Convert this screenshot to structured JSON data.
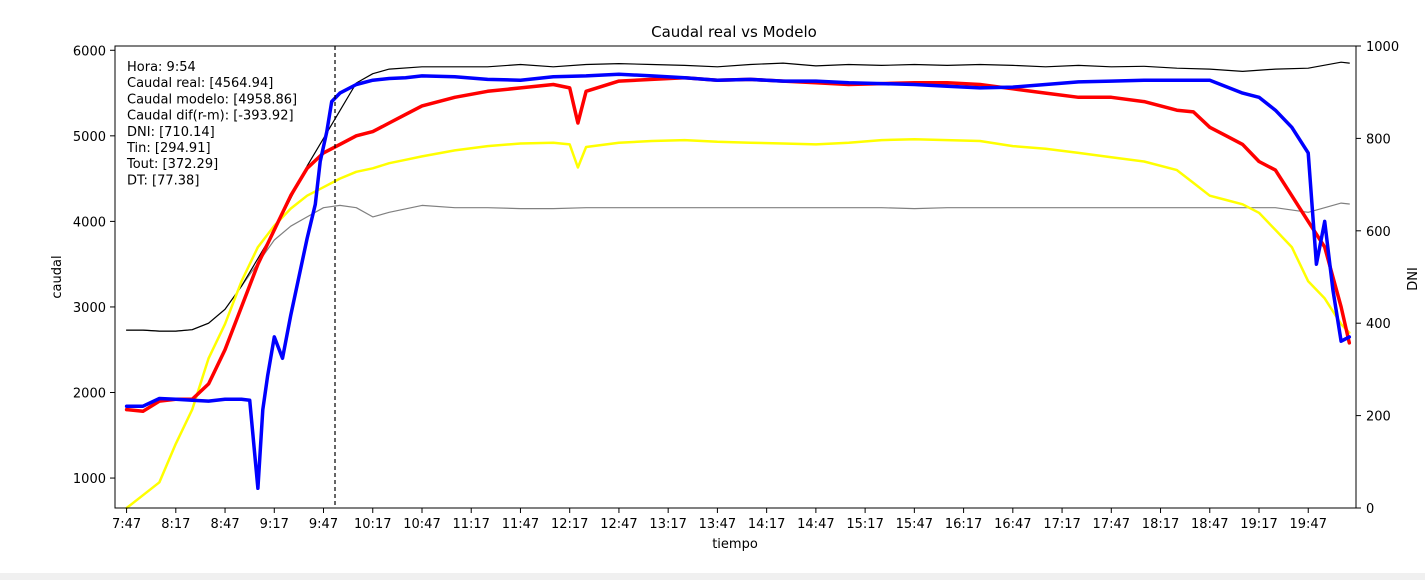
{
  "chart_data": {
    "type": "line",
    "title": "Caudal real vs Modelo",
    "xlabel": "tiempo",
    "ylabel_left": "caudal",
    "ylabel_right": "DNI",
    "x_ticks": [
      "7:47",
      "8:17",
      "8:47",
      "9:17",
      "9:47",
      "10:17",
      "10:47",
      "11:17",
      "11:47",
      "12:17",
      "12:47",
      "13:17",
      "13:47",
      "14:17",
      "14:47",
      "15:17",
      "15:47",
      "16:17",
      "16:47",
      "17:17",
      "17:47",
      "18:17",
      "18:47",
      "19:17",
      "19:47"
    ],
    "y_left_ticks": [
      1000,
      2000,
      3000,
      4000,
      5000,
      6000
    ],
    "y_left_range": [
      650,
      6050
    ],
    "y_right_ticks": [
      0,
      200,
      400,
      600,
      800,
      1000
    ],
    "y_right_range": [
      0,
      1000
    ],
    "x_range_minutes": [
      -7.05,
      749.1
    ],
    "cursor_time_minutes": 127,
    "annotation": [
      "Hora: 9:54",
      "Caudal real: [4564.94]",
      "Caudal modelo: [4958.86]",
      "Caudal dif(r-m): [-393.92]",
      "DNI: [710.14]",
      "Tin: [294.91]",
      "Tout: [372.29]",
      "DT: [77.38]"
    ],
    "grid": false,
    "series": [
      {
        "color": "#0000ff",
        "width": 3.5,
        "axis": "left",
        "x": [
          0,
          10,
          20,
          30,
          40,
          50,
          60,
          70,
          75,
          80,
          83,
          86,
          90,
          95,
          100,
          105,
          110,
          115,
          118,
          122,
          125,
          130,
          135,
          140,
          150,
          160,
          170,
          180,
          200,
          220,
          240,
          260,
          280,
          300,
          320,
          340,
          360,
          380,
          400,
          420,
          440,
          460,
          480,
          500,
          520,
          540,
          560,
          580,
          600,
          620,
          640,
          660,
          680,
          690,
          700,
          710,
          720,
          725,
          730,
          735,
          740,
          745
        ],
        "values": [
          1840,
          1840,
          1930,
          1920,
          1910,
          1900,
          1920,
          1920,
          1910,
          880,
          1800,
          2200,
          2650,
          2400,
          2900,
          3350,
          3800,
          4200,
          4700,
          5050,
          5400,
          5500,
          5550,
          5600,
          5650,
          5670,
          5680,
          5700,
          5690,
          5660,
          5650,
          5690,
          5700,
          5720,
          5700,
          5680,
          5650,
          5660,
          5640,
          5640,
          5620,
          5610,
          5600,
          5580,
          5560,
          5570,
          5600,
          5630,
          5640,
          5650,
          5650,
          5650,
          5500,
          5450,
          5300,
          5100,
          4800,
          3500,
          4000,
          3200,
          2600,
          2650
        ]
      },
      {
        "color": "#ff0000",
        "width": 3.5,
        "axis": "left",
        "x": [
          0,
          10,
          20,
          30,
          40,
          50,
          60,
          70,
          80,
          90,
          100,
          110,
          120,
          130,
          140,
          150,
          160,
          170,
          180,
          200,
          220,
          240,
          260,
          270,
          275,
          280,
          300,
          320,
          340,
          360,
          380,
          400,
          420,
          440,
          460,
          480,
          500,
          520,
          540,
          560,
          580,
          600,
          620,
          640,
          650,
          660,
          670,
          680,
          690,
          700,
          710,
          720,
          730,
          740,
          745
        ],
        "values": [
          1800,
          1780,
          1900,
          1920,
          1920,
          2100,
          2500,
          3000,
          3500,
          3900,
          4300,
          4620,
          4800,
          4900,
          5000,
          5050,
          5150,
          5250,
          5350,
          5450,
          5520,
          5560,
          5600,
          5560,
          5150,
          5520,
          5640,
          5660,
          5680,
          5650,
          5660,
          5640,
          5620,
          5600,
          5610,
          5620,
          5620,
          5600,
          5550,
          5500,
          5450,
          5450,
          5400,
          5300,
          5280,
          5100,
          5000,
          4900,
          4700,
          4600,
          4300,
          4000,
          3700,
          3000,
          2580
        ]
      },
      {
        "color": "#ffff00",
        "width": 2.5,
        "axis": "left",
        "x": [
          0,
          10,
          20,
          30,
          40,
          50,
          60,
          70,
          80,
          90,
          100,
          110,
          120,
          130,
          140,
          150,
          160,
          170,
          180,
          200,
          220,
          240,
          260,
          270,
          275,
          280,
          300,
          320,
          340,
          360,
          380,
          400,
          420,
          440,
          460,
          480,
          500,
          520,
          540,
          560,
          580,
          600,
          620,
          640,
          650,
          660,
          670,
          680,
          690,
          700,
          710,
          720,
          730,
          740,
          745
        ],
        "values": [
          650,
          800,
          950,
          1400,
          1800,
          2400,
          2800,
          3300,
          3700,
          3950,
          4150,
          4300,
          4400,
          4500,
          4580,
          4620,
          4680,
          4720,
          4760,
          4830,
          4880,
          4910,
          4920,
          4900,
          4630,
          4870,
          4920,
          4940,
          4950,
          4930,
          4920,
          4910,
          4900,
          4920,
          4950,
          4960,
          4950,
          4940,
          4880,
          4850,
          4800,
          4750,
          4700,
          4600,
          4450,
          4300,
          4250,
          4200,
          4100,
          3900,
          3700,
          3300,
          3100,
          2800,
          2700
        ]
      },
      {
        "color": "#000000",
        "width": 1.2,
        "axis": "right",
        "x": [
          0,
          10,
          20,
          30,
          40,
          50,
          60,
          70,
          80,
          90,
          100,
          110,
          120,
          130,
          140,
          150,
          160,
          180,
          200,
          220,
          240,
          260,
          280,
          300,
          320,
          340,
          360,
          380,
          400,
          420,
          440,
          460,
          480,
          500,
          520,
          540,
          560,
          580,
          600,
          620,
          640,
          660,
          680,
          700,
          720,
          740,
          745
        ],
        "values": [
          385,
          385,
          383,
          383,
          386,
          400,
          430,
          480,
          540,
          600,
          670,
          740,
          800,
          860,
          920,
          940,
          950,
          955,
          955,
          955,
          960,
          955,
          960,
          962,
          960,
          958,
          955,
          960,
          963,
          957,
          960,
          958,
          960,
          958,
          960,
          958,
          955,
          958,
          955,
          956,
          952,
          950,
          945,
          950,
          952,
          965,
          963
        ]
      },
      {
        "color": "#808080",
        "width": 1.2,
        "axis": "right",
        "x": [
          0,
          10,
          20,
          30,
          40,
          50,
          60,
          70,
          80,
          90,
          100,
          110,
          120,
          130,
          140,
          150,
          160,
          180,
          200,
          220,
          240,
          260,
          280,
          300,
          320,
          340,
          360,
          380,
          400,
          420,
          440,
          460,
          480,
          500,
          520,
          540,
          560,
          580,
          600,
          620,
          640,
          660,
          680,
          700,
          720,
          730,
          740,
          745
        ],
        "values": [
          385,
          385,
          383,
          383,
          386,
          400,
          430,
          480,
          530,
          580,
          610,
          630,
          650,
          655,
          650,
          630,
          640,
          655,
          650,
          650,
          648,
          648,
          650,
          650,
          650,
          650,
          650,
          650,
          650,
          650,
          650,
          650,
          648,
          650,
          650,
          650,
          650,
          650,
          650,
          650,
          650,
          650,
          650,
          650,
          640,
          650,
          660,
          658
        ]
      }
    ]
  }
}
